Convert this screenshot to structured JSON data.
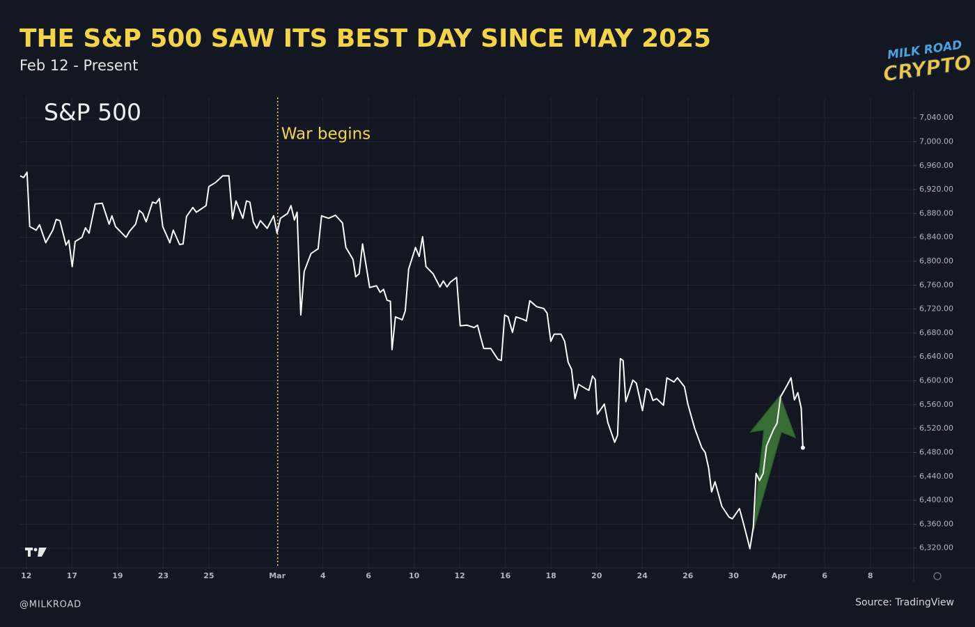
{
  "chart_data": {
    "type": "line",
    "title": "THE S&P 500 SAW ITS BEST DAY SINCE MAY 2025",
    "subtitle": "Feb 12 - Present",
    "x": [
      -0.27,
      -0.12,
      0.03,
      0.15,
      0.43,
      0.58,
      0.85,
      1.16,
      1.31,
      1.47,
      1.74,
      1.86,
      2.01,
      2.14,
      2.44,
      2.59,
      2.75,
      3.02,
      3.33,
      3.63,
      3.75,
      3.91,
      4.37,
      4.52,
      4.79,
      4.95,
      5.1,
      5.25,
      5.53,
      5.68,
      5.83,
      5.98,
      6.29,
      6.44,
      6.72,
      6.87,
      7.02,
      7.3,
      7.45,
      7.88,
      8.0,
      8.3,
      8.61,
      8.88,
      9.04,
      9.19,
      9.49,
      9.65,
      9.8,
      9.95,
      10.1,
      10.26,
      10.56,
      10.84,
      10.99,
      11.14,
      11.45,
      11.6,
      11.75,
      11.87,
      12.03,
      12.18,
      12.48,
      12.79,
      12.94,
      13.25,
      13.55,
      13.86,
      14.01,
      14.32,
      14.44,
      14.59,
      14.74,
      15.05,
      15.35,
      15.51,
      15.66,
      15.81,
      15.96,
      16.03,
      16.18,
      16.48,
      16.61,
      16.76,
      17.06,
      17.22,
      17.37,
      17.52,
      17.83,
      18.13,
      18.28,
      18.44,
      18.59,
      18.86,
      19.02,
      19.32,
      19.63,
      19.78,
      19.9,
      20.05,
      20.36,
      20.67,
      20.82,
      20.97,
      21.12,
      21.31,
      21.46,
      21.76,
      21.92,
      22.07,
      22.37,
      22.68,
      22.83,
      22.99,
      23.14,
      23.44,
      23.6,
      23.75,
      23.9,
      24.05,
      24.21,
      24.51,
      24.66,
      24.82,
      24.94,
      25.03,
      25.34,
      25.49,
      25.79,
      25.92,
      26.04,
      26.16,
      26.28,
      26.59,
      26.74,
      27.01,
      27.17,
      27.32,
      27.47,
      27.63,
      27.93,
      28.08,
      28.39,
      28.54,
      28.85,
      29.0,
      29.3,
      29.61,
      29.76,
      29.91,
      30.04,
      30.19,
      30.49,
      30.8,
      30.95,
      31.26,
      31.41,
      31.56,
      31.72,
      31.87,
      31.99,
      32.14,
      32.3,
      32.45,
      32.75,
      32.91,
      33.06,
      33.36,
      33.52,
      33.67,
      33.82,
      33.97,
      34.04
    ],
    "series": [
      {
        "name": "S&P 500",
        "color": "#ffffff",
        "values": [
          6943,
          6940,
          6949,
          6858,
          6852,
          6861,
          6831,
          6852,
          6870,
          6868,
          6827,
          6835,
          6791,
          6833,
          6840,
          6856,
          6847,
          6896,
          6897,
          6862,
          6876,
          6858,
          6840,
          6850,
          6862,
          6885,
          6880,
          6866,
          6899,
          6897,
          6905,
          6858,
          6831,
          6852,
          6828,
          6829,
          6875,
          6890,
          6882,
          6893,
          6925,
          6932,
          6943,
          6943,
          6871,
          6901,
          6872,
          6901,
          6899,
          6866,
          6855,
          6868,
          6855,
          6876,
          6847,
          6872,
          6880,
          6893,
          6869,
          6882,
          6710,
          6783,
          6813,
          6821,
          6876,
          6872,
          6877,
          6864,
          6823,
          6803,
          6774,
          6779,
          6829,
          6756,
          6759,
          6748,
          6753,
          6735,
          6733,
          6652,
          6707,
          6702,
          6717,
          6787,
          6823,
          6808,
          6841,
          6791,
          6779,
          6757,
          6767,
          6757,
          6765,
          6773,
          6692,
          6693,
          6689,
          6693,
          6675,
          6654,
          6654,
          6636,
          6634,
          6710,
          6707,
          6681,
          6707,
          6703,
          6700,
          6734,
          6724,
          6721,
          6713,
          6666,
          6678,
          6678,
          6666,
          6631,
          6619,
          6570,
          6594,
          6587,
          6584,
          6608,
          6602,
          6544,
          6561,
          6530,
          6497,
          6509,
          6637,
          6634,
          6565,
          6601,
          6596,
          6550,
          6587,
          6584,
          6567,
          6570,
          6559,
          6605,
          6598,
          6605,
          6590,
          6561,
          6520,
          6488,
          6480,
          6454,
          6414,
          6431,
          6390,
          6372,
          6369,
          6386,
          6365,
          6343,
          6319,
          6355,
          6445,
          6433,
          6445,
          6491,
          6518,
          6529,
          6573,
          6593,
          6605,
          6568,
          6580,
          6554,
          6488
        ]
      }
    ],
    "xlim": [
      -0.3,
      38.9
    ],
    "xticks": [
      {
        "value": 0,
        "label": "12"
      },
      {
        "value": 2,
        "label": "17"
      },
      {
        "value": 4,
        "label": "19"
      },
      {
        "value": 6,
        "label": "23"
      },
      {
        "value": 8,
        "label": "25"
      },
      {
        "value": 11,
        "label": "Mar"
      },
      {
        "value": 13,
        "label": "4"
      },
      {
        "value": 15,
        "label": "6"
      },
      {
        "value": 17,
        "label": "10"
      },
      {
        "value": 19,
        "label": "12"
      },
      {
        "value": 21,
        "label": "16"
      },
      {
        "value": 23,
        "label": "18"
      },
      {
        "value": 25,
        "label": "20"
      },
      {
        "value": 27,
        "label": "24"
      },
      {
        "value": 29,
        "label": "26"
      },
      {
        "value": 31,
        "label": "30"
      },
      {
        "value": 33,
        "label": "Apr"
      },
      {
        "value": 35,
        "label": "6"
      },
      {
        "value": 37,
        "label": "8"
      }
    ],
    "ylim": [
      6287,
      7074
    ],
    "yticks": [
      {
        "value": 6320,
        "label": "6,320.00"
      },
      {
        "value": 6360,
        "label": "6,360.00"
      },
      {
        "value": 6400,
        "label": "6,400.00"
      },
      {
        "value": 6440,
        "label": "6,440.00"
      },
      {
        "value": 6480,
        "label": "6,480.00"
      },
      {
        "value": 6520,
        "label": "6,520.00"
      },
      {
        "value": 6560,
        "label": "6,560.00"
      },
      {
        "value": 6600,
        "label": "6,600.00"
      },
      {
        "value": 6640,
        "label": "6,640.00"
      },
      {
        "value": 6680,
        "label": "6,680.00"
      },
      {
        "value": 6720,
        "label": "6,720.00"
      },
      {
        "value": 6760,
        "label": "6,760.00"
      },
      {
        "value": 6800,
        "label": "6,800.00"
      },
      {
        "value": 6840,
        "label": "6,840.00"
      },
      {
        "value": 6880,
        "label": "6,880.00"
      },
      {
        "value": 6920,
        "label": "6,920.00"
      },
      {
        "value": 6960,
        "label": "6,960.00"
      },
      {
        "value": 7000,
        "label": "7,000.00"
      },
      {
        "value": 7040,
        "label": "7,040.00"
      }
    ],
    "grid": true,
    "annotations": [
      {
        "x": 11.02,
        "text": "War begins",
        "color": "#f5d547"
      }
    ]
  },
  "logo": {
    "line1": "MILK ROAD",
    "line2": "CRYPTO"
  },
  "footer": {
    "handle": "@MILKROAD",
    "source": "Source: TradingView"
  }
}
